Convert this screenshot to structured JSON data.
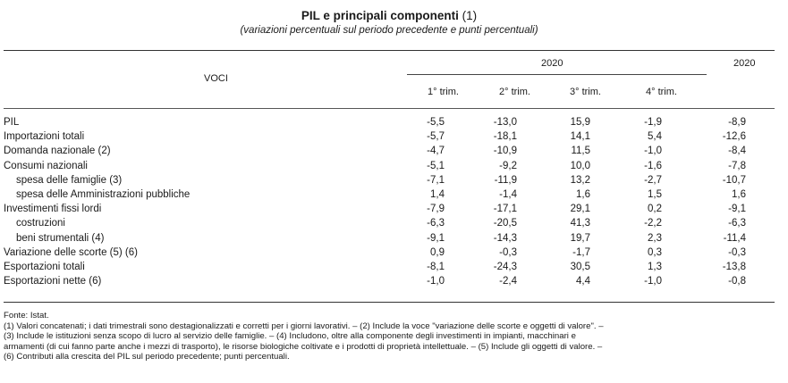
{
  "title": {
    "main": "PIL e principali componenti",
    "note_ref": "(1)",
    "subtitle": "(variazioni percentuali sul periodo precedente e punti percentuali)"
  },
  "header": {
    "voci": "VOCI",
    "year_quarterly": "2020",
    "year_annual": "2020",
    "quarters": [
      "1° trim.",
      "2° trim.",
      "3° trim.",
      "4° trim."
    ]
  },
  "rows": [
    {
      "label": "PIL",
      "indent": false,
      "values": [
        "-5,5",
        "-13,0",
        "15,9",
        "-1,9",
        "-8,9"
      ]
    },
    {
      "label": "Importazioni totali",
      "indent": false,
      "values": [
        "-5,7",
        "-18,1",
        "14,1",
        "5,4",
        "-12,6"
      ]
    },
    {
      "label": "Domanda nazionale (2)",
      "indent": false,
      "values": [
        "-4,7",
        "-10,9",
        "11,5",
        "-1,0",
        "-8,4"
      ]
    },
    {
      "label": "Consumi nazionali",
      "indent": false,
      "values": [
        "-5,1",
        "-9,2",
        "10,0",
        "-1,6",
        "-7,8"
      ]
    },
    {
      "label": "spesa delle famiglie (3)",
      "indent": true,
      "values": [
        "-7,1",
        "-11,9",
        "13,2",
        "-2,7",
        "-10,7"
      ]
    },
    {
      "label": "spesa delle Amministrazioni pubbliche",
      "indent": true,
      "values": [
        "1,4",
        "-1,4",
        "1,6",
        "1,5",
        "1,6"
      ]
    },
    {
      "label": "Investimenti fissi lordi",
      "indent": false,
      "values": [
        "-7,9",
        "-17,1",
        "29,1",
        "0,2",
        "-9,1"
      ]
    },
    {
      "label": "costruzioni",
      "indent": true,
      "values": [
        "-6,3",
        "-20,5",
        "41,3",
        "-2,2",
        "-6,3"
      ]
    },
    {
      "label": "beni strumentali (4)",
      "indent": true,
      "values": [
        "-9,1",
        "-14,3",
        "19,7",
        "2,3",
        "-11,4"
      ]
    },
    {
      "label": "Variazione delle scorte (5) (6)",
      "indent": false,
      "values": [
        "0,9",
        "-0,3",
        "-1,7",
        "0,3",
        "-0,3"
      ]
    },
    {
      "label": "Esportazioni totali",
      "indent": false,
      "values": [
        "-8,1",
        "-24,3",
        "30,5",
        "1,3",
        "-13,8"
      ]
    },
    {
      "label": "Esportazioni nette (6)",
      "indent": false,
      "values": [
        "-1,0",
        "-2,4",
        "4,4",
        "-1,0",
        "-0,8"
      ]
    }
  ],
  "notes": [
    "Fonte: Istat.",
    "(1) Valori concatenati; i dati trimestrali sono destagionalizzati e corretti per i giorni lavorativi. – (2) Include la voce \"variazione delle scorte e oggetti di valore\". –",
    "(3) Include le istituzioni senza scopo di lucro al servizio delle famiglie. – (4) Includono, oltre alla componente degli investimenti in impianti, macchinari e",
    "armamenti (di cui fanno parte anche i mezzi di trasporto), le risorse biologiche coltivate e i prodotti di proprietà intellettuale. – (5) Include gli oggetti di valore. –",
    "(6) Contributi alla crescita del PIL sul periodo precedente; punti percentuali."
  ]
}
